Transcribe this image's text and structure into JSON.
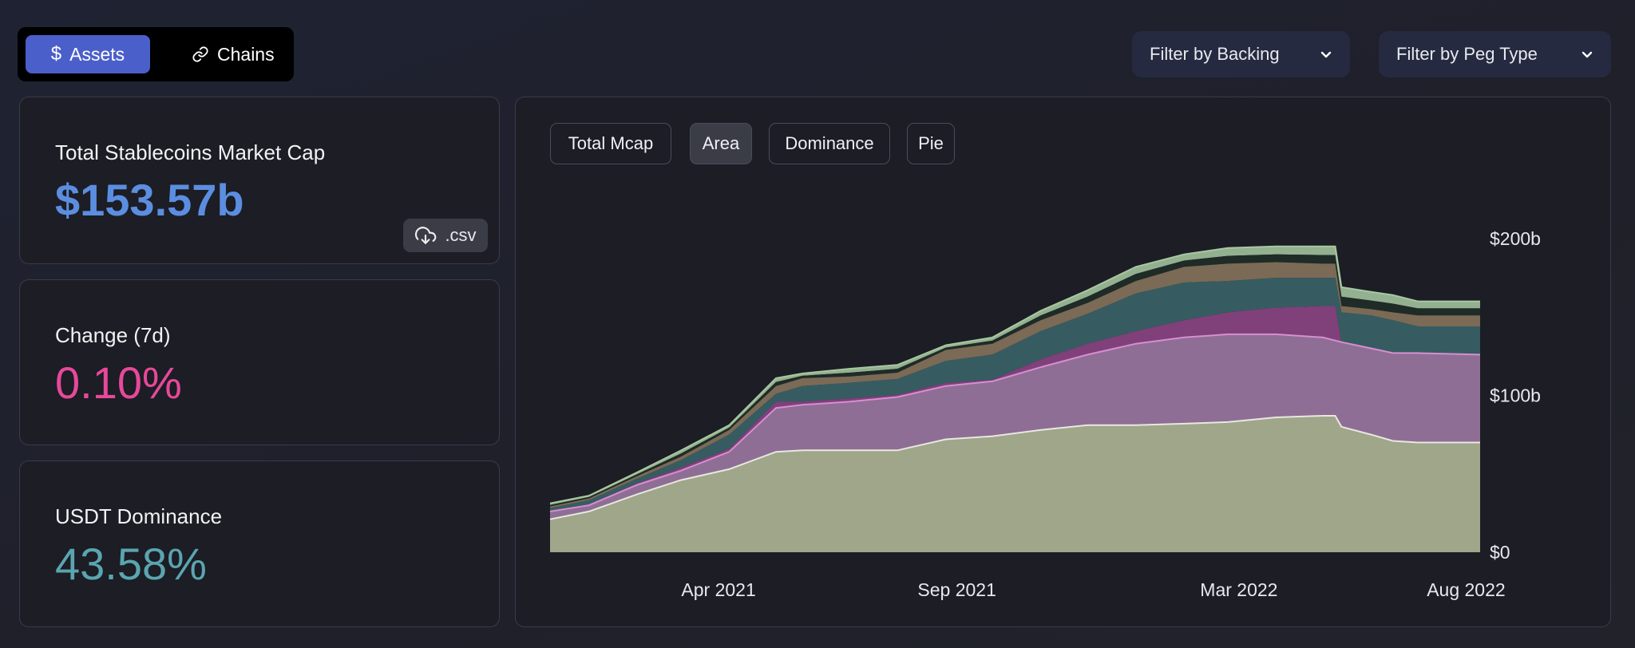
{
  "view_tabs": [
    {
      "label": "Assets",
      "icon": "dollar-icon",
      "active": true
    },
    {
      "label": "Chains",
      "icon": "link-icon",
      "active": false
    }
  ],
  "filters": {
    "backing": "Filter by Backing",
    "peg_type": "Filter by Peg Type"
  },
  "stats": {
    "mcap": {
      "title": "Total Stablecoins Market Cap",
      "value": "$153.57b",
      "color": "#5b8ee0",
      "csv_label": ".csv"
    },
    "change": {
      "title": "Change (7d)",
      "value": "0.10%",
      "color": "#e8489a"
    },
    "dominance": {
      "title": "USDT Dominance",
      "value": "43.58%",
      "color": "#5aa5b0"
    }
  },
  "chart_modes": [
    {
      "label": "Total Mcap",
      "selected": false
    },
    {
      "label": "Area",
      "selected": true
    },
    {
      "label": "Dominance",
      "selected": false
    },
    {
      "label": "Pie",
      "selected": false
    }
  ],
  "chart_data": {
    "type": "area",
    "stacked": true,
    "ylim": [
      0,
      200
    ],
    "yticks": [
      {
        "value": 0,
        "label": "$0"
      },
      {
        "value": 100,
        "label": "$100b"
      },
      {
        "value": 200,
        "label": "$200b"
      }
    ],
    "xticks": [
      {
        "date": "2021-04-01",
        "label": "Apr 2021"
      },
      {
        "date": "2021-09-01",
        "label": "Sep 2021"
      },
      {
        "date": "2022-03-01",
        "label": "Mar 2022"
      },
      {
        "date": "2022-08-01",
        "label": "Aug 2022"
      }
    ],
    "x": [
      "2020-12-21",
      "2021-01-15",
      "2021-02-15",
      "2021-03-15",
      "2021-04-15",
      "2021-05-15",
      "2021-06-01",
      "2021-07-01",
      "2021-08-01",
      "2021-09-01",
      "2021-10-01",
      "2021-11-01",
      "2021-12-01",
      "2022-01-01",
      "2022-02-01",
      "2022-03-01",
      "2022-04-01",
      "2022-05-01",
      "2022-05-09",
      "2022-05-13",
      "2022-06-01",
      "2022-06-15",
      "2022-07-01",
      "2022-08-10"
    ],
    "series": [
      {
        "color": "#9fa68a",
        "line": "#e8e8e0",
        "values": [
          21,
          26,
          37,
          46,
          53,
          64,
          65,
          65,
          65,
          72,
          74,
          78,
          81,
          81,
          82,
          83,
          86,
          87,
          87,
          80,
          75,
          71,
          70,
          70
        ]
      },
      {
        "color": "#8f6e95",
        "line": "#d68fd0",
        "values": [
          5,
          4,
          6,
          6,
          11,
          28,
          29,
          31,
          34,
          34,
          35,
          40,
          45,
          52,
          55,
          56,
          53,
          50,
          48,
          54,
          55,
          56,
          57,
          56
        ]
      },
      {
        "color": "#80407a",
        "values": [
          0.4,
          0.6,
          1,
          2,
          2,
          4,
          2,
          2,
          1.5,
          2,
          1,
          5,
          7,
          8,
          11,
          14,
          17,
          20,
          22,
          0,
          0,
          0,
          0,
          0
        ]
      },
      {
        "color": "#365c62",
        "values": [
          1.7,
          2.6,
          3,
          4.8,
          9,
          5,
          10,
          10,
          10,
          14,
          16,
          18,
          19,
          24,
          24,
          20,
          19,
          18,
          18,
          19,
          21,
          21,
          17,
          18
        ]
      },
      {
        "color": "#7b6a55",
        "values": [
          1.1,
          1.1,
          1.6,
          2.1,
          3,
          5,
          5,
          4,
          4,
          7,
          7,
          7,
          7,
          8,
          10,
          11,
          10,
          9,
          9,
          4,
          4,
          5,
          7,
          7
        ]
      },
      {
        "color": "#1f2b27",
        "values": [
          1,
          0.9,
          1.2,
          2,
          1.5,
          2.5,
          1.5,
          2.5,
          2.5,
          1.5,
          2,
          3,
          4,
          4.5,
          4,
          5,
          5,
          5.5,
          5.5,
          6,
          5.5,
          5.5,
          4.5,
          4.5
        ]
      },
      {
        "color": "#93b090",
        "values": [
          1,
          0.9,
          1.2,
          2,
          1.5,
          2.5,
          1.5,
          2.5,
          2.5,
          1.5,
          2,
          3,
          4,
          4.5,
          4,
          5,
          5,
          5.5,
          5.5,
          6,
          5.5,
          5.5,
          4.5,
          4.5
        ]
      }
    ],
    "grid": false,
    "legend": "none"
  }
}
